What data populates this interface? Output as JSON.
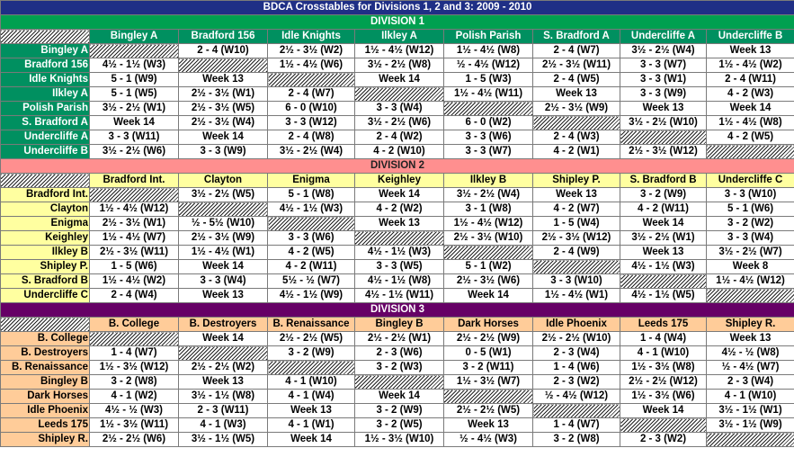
{
  "title": "BDCA Crosstables for Divisions 1, 2 and 3: 2009 - 2010",
  "divisions": [
    {
      "name": "DIVISION 1",
      "cls": "1",
      "teams": [
        "Bingley A",
        "Bradford 156",
        "Idle Knights",
        "Ilkley A",
        "Polish Parish",
        "S. Bradford A",
        "Undercliffe A",
        "Undercliffe B"
      ],
      "rows": [
        [
          "Bingley A",
          "",
          "2 - 4 (W10)",
          "2½ - 3½ (W2)",
          "1½ - 4½ (W12)",
          "1½ - 4½ (W8)",
          "2 - 4 (W7)",
          "3½ - 2½ (W4)",
          "Week 13"
        ],
        [
          "Bradford 156",
          "4½ - 1½ (W3)",
          "",
          "1½ - 4½ (W6)",
          "3½ - 2½ (W8)",
          "½ - 4½ (W12)",
          "2½ - 3½ (W11)",
          "3 - 3 (W7)",
          "1½ - 4½ (W2)"
        ],
        [
          "Idle Knights",
          "5 - 1 (W9)",
          "Week 13",
          "",
          "Week 14",
          "1 - 5 (W3)",
          "2 - 4 (W5)",
          "3 - 3 (W1)",
          "2 - 4 (W11)"
        ],
        [
          "Ilkley A",
          "5 - 1 (W5)",
          "2½ - 3½ (W1)",
          "2 - 4 (W7)",
          "",
          "1½ - 4½ (W11)",
          "Week 13",
          "3 - 3 (W9)",
          "4 - 2 (W3)"
        ],
        [
          "Polish Parish",
          "3½ - 2½ (W1)",
          "2½ - 3½ (W5)",
          "6 - 0 (W10)",
          "3 - 3 (W4)",
          "",
          "2½ - 3½ (W9)",
          "Week 13",
          "Week 14"
        ],
        [
          "S. Bradford A",
          "Week 14",
          "2½ - 3½ (W4)",
          "3 - 3 (W12)",
          "3½ - 2½ (W6)",
          "6 - 0 (W2)",
          "",
          "3½ - 2½ (W10)",
          "1½ - 4½ (W8)"
        ],
        [
          "Undercliffe A",
          "3 - 3 (W11)",
          "Week 14",
          "2 - 4 (W8)",
          "2 - 4 (W2)",
          "3 - 3 (W6)",
          "2 - 4 (W3)",
          "",
          "4 - 2 (W5)"
        ],
        [
          "Undercliffe B",
          "3½ - 2½ (W6)",
          "3 - 3 (W9)",
          "3½ - 2½ (W4)",
          "4 - 2 (W10)",
          "3 - 3 (W7)",
          "4 - 2 (W1)",
          "2½ - 3½ (W12)",
          ""
        ]
      ]
    },
    {
      "name": "DIVISION 2",
      "cls": "2",
      "teams": [
        "Bradford Int.",
        "Clayton",
        "Enigma",
        "Keighley",
        "Ilkley B",
        "Shipley P.",
        "S. Bradford B",
        "Undercliffe C"
      ],
      "rows": [
        [
          "Bradford Int.",
          "",
          "3½ - 2½ (W5)",
          "5 - 1 (W8)",
          "Week 14",
          "3½ - 2½ (W4)",
          "Week 13",
          "3 - 2 (W9)",
          "3 - 3 (W10)"
        ],
        [
          "Clayton",
          "1½ - 4½ (W12)",
          "",
          "4½ - 1½ (W3)",
          "4 - 2 (W2)",
          "3 - 1 (W8)",
          "4 - 2 (W7)",
          "4 - 2 (W11)",
          "5 - 1 (W6)"
        ],
        [
          "Enigma",
          "2½ - 3½ (W1)",
          "½ - 5½ (W10)",
          "",
          "Week 13",
          "1½ - 4½ (W12)",
          "1 - 5 (W4)",
          "Week 14",
          "3 - 2 (W2)"
        ],
        [
          "Keighley",
          "1½ - 4½ (W7)",
          "2½ - 3½ (W9)",
          "3 - 3 (W6)",
          "",
          "2½ - 3½ (W10)",
          "2½ - 3½ (W12)",
          "3½ - 2½ (W1)",
          "3 - 3 (W4)"
        ],
        [
          "Ilkley B",
          "2½ - 3½ (W11)",
          "1½ - 4½ (W1)",
          "4 - 2 (W5)",
          "4½ - 1½ (W3)",
          "",
          "2 - 4 (W9)",
          "Week 13",
          "3½ - 2½ (W7)"
        ],
        [
          "Shipley P.",
          "1 - 5 (W6)",
          "Week 14",
          "4 - 2 (W11)",
          "3 - 3 (W5)",
          "5 - 1 (W2)",
          "",
          "4½ - 1½ (W3)",
          "Week 8"
        ],
        [
          "S. Bradford B",
          "1½ - 4½ (W2)",
          "3 - 3 (W4)",
          "5½ - ½ (W7)",
          "4½ - 1½ (W8)",
          "2½ - 3½ (W6)",
          "3 - 3 (W10)",
          "",
          "1½ - 4½ (W12)"
        ],
        [
          "Undercliffe C",
          "2 - 4 (W4)",
          "Week 13",
          "4½ - 1½ (W9)",
          "4½ - 1½ (W11)",
          "Week 14",
          "1½ - 4½ (W1)",
          "4½ - 1½ (W5)",
          ""
        ]
      ]
    },
    {
      "name": "DIVISION 3",
      "cls": "3",
      "teams": [
        "B. College",
        "B. Destroyers",
        "B. Renaissance",
        "Bingley B",
        "Dark Horses",
        "Idle Phoenix",
        "Leeds 175",
        "Shipley R."
      ],
      "rows": [
        [
          "B. College",
          "",
          "Week 14",
          "2½ - 2½ (W5)",
          "2½ - 2½ (W1)",
          "2½ - 2½ (W9)",
          "2½ - 2½ (W10)",
          "1 - 4 (W4)",
          "Week 13"
        ],
        [
          "B. Destroyers",
          "1 - 4 (W7)",
          "",
          "3 - 2 (W9)",
          "2 - 3 (W6)",
          "0 - 5 (W1)",
          "2 - 3 (W4)",
          "4 - 1 (W10)",
          "4½ - ½ (W8)"
        ],
        [
          "B. Renaissance",
          "1½ - 3½ (W12)",
          "2½ - 2½ (W2)",
          "",
          "3 - 2 (W3)",
          "3 - 2 (W11)",
          "1 - 4 (W6)",
          "1½ - 3½ (W8)",
          "½ - 4½ (W7)"
        ],
        [
          "Bingley B",
          "3 - 2 (W8)",
          "Week 13",
          "4 - 1 (W10)",
          "",
          "1½ - 3½ (W7)",
          "2 - 3 (W2)",
          "2½ - 2½ (W12)",
          "2 - 3 (W4)"
        ],
        [
          "Dark Horses",
          "4 - 1 (W2)",
          "3½ - 1½ (W8)",
          "4 - 1 (W4)",
          "Week 14",
          "",
          "½ - 4½ (W12)",
          "1½ - 3½ (W6)",
          "4 - 1 (W10)"
        ],
        [
          "Idle Phoenix",
          "4½ - ½ (W3)",
          "2 - 3 (W11)",
          "Week 13",
          "3 - 2 (W9)",
          "2½ - 2½ (W5)",
          "",
          "Week 14",
          "3½ - 1½ (W1)"
        ],
        [
          "Leeds 175",
          "1½ - 3½ (W11)",
          "4 - 1 (W3)",
          "4 - 1 (W1)",
          "3 - 2 (W5)",
          "Week 13",
          "1 - 4 (W7)",
          "",
          "3½ - 1½ (W9)"
        ],
        [
          "Shipley R.",
          "2½ - 2½ (W6)",
          "3½ - 1½ (W5)",
          "Week 14",
          "1½ - 3½ (W10)",
          "½ - 4½ (W3)",
          "3 - 2 (W8)",
          "2 - 3 (W2)",
          ""
        ]
      ]
    }
  ]
}
